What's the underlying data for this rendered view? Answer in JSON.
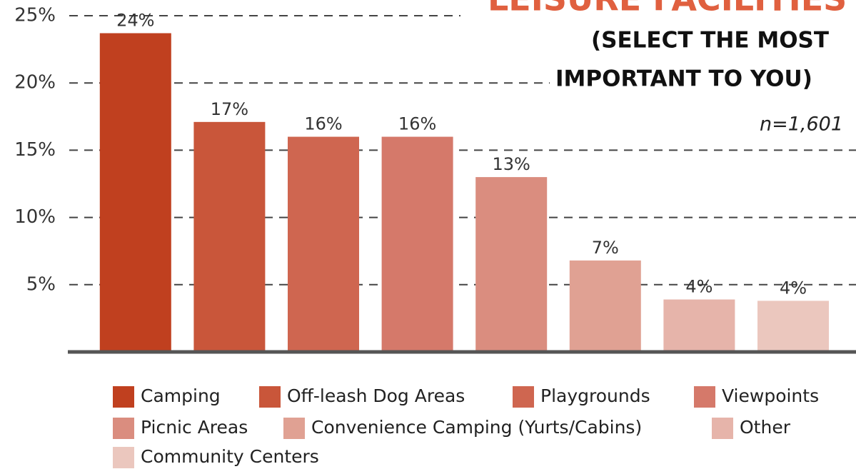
{
  "chart_data": {
    "type": "bar",
    "title": "LEISURE FACILITIES",
    "subtitle": [
      "(SELECT THE MOST",
      "IMPORTANT TO YOU)"
    ],
    "annotation": "n=1,601",
    "categories": [
      "Camping",
      "Off-leash Dog Areas",
      "Playgrounds",
      "Viewpoints",
      "Picnic Areas",
      "Convenience Camping (Yurts/Cabins)",
      "Other",
      "Community Centers"
    ],
    "values": [
      23.7,
      17.1,
      16,
      16,
      13,
      6.8,
      3.9,
      3.8
    ],
    "value_labels": [
      "24%",
      "17%",
      "16%",
      "16%",
      "13%",
      "7%",
      "4%",
      "4%"
    ],
    "colors": [
      "#c0401f",
      "#c9563a",
      "#cf6650",
      "#d5796a",
      "#da8d7f",
      "#e0a193",
      "#e6b4aa",
      "#ebc7be"
    ],
    "ylim": [
      0,
      25
    ],
    "yticks": [
      {
        "value": 5,
        "label": "5%"
      },
      {
        "value": 10,
        "label": "10%"
      },
      {
        "value": 15,
        "label": "15%"
      },
      {
        "value": 20,
        "label": "20%"
      },
      {
        "value": 25,
        "label": "25%"
      }
    ],
    "grid": true
  }
}
